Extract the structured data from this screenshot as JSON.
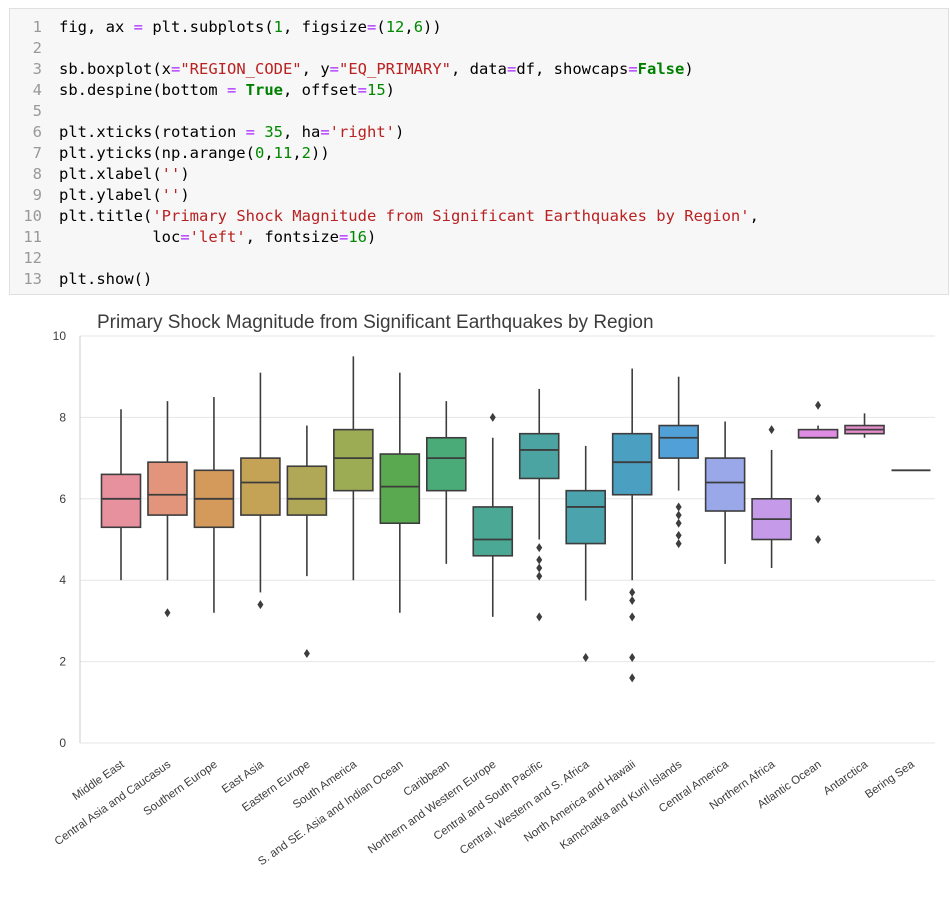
{
  "code_lines": [
    {
      "n": "1",
      "tokens": [
        {
          "t": "fig, ax "
        },
        {
          "t": "=",
          "c": "op"
        },
        {
          "t": " plt.subplots("
        },
        {
          "t": "1",
          "c": "num"
        },
        {
          "t": ", figsize"
        },
        {
          "t": "=",
          "c": "op"
        },
        {
          "t": "("
        },
        {
          "t": "12",
          "c": "num"
        },
        {
          "t": ","
        },
        {
          "t": "6",
          "c": "num"
        },
        {
          "t": "))"
        }
      ]
    },
    {
      "n": "2",
      "tokens": []
    },
    {
      "n": "3",
      "tokens": [
        {
          "t": "sb.boxplot(x"
        },
        {
          "t": "=",
          "c": "op"
        },
        {
          "t": "\"REGION_CODE\"",
          "c": "str"
        },
        {
          "t": ", y"
        },
        {
          "t": "=",
          "c": "op"
        },
        {
          "t": "\"EQ_PRIMARY\"",
          "c": "str"
        },
        {
          "t": ", data"
        },
        {
          "t": "=",
          "c": "op"
        },
        {
          "t": "df, showcaps"
        },
        {
          "t": "=",
          "c": "op"
        },
        {
          "t": "False",
          "c": "kw"
        },
        {
          "t": ")"
        }
      ]
    },
    {
      "n": "4",
      "tokens": [
        {
          "t": "sb.despine(bottom "
        },
        {
          "t": "=",
          "c": "op"
        },
        {
          "t": " "
        },
        {
          "t": "True",
          "c": "kw"
        },
        {
          "t": ", offset"
        },
        {
          "t": "=",
          "c": "op"
        },
        {
          "t": "15",
          "c": "num"
        },
        {
          "t": ")"
        }
      ]
    },
    {
      "n": "5",
      "tokens": []
    },
    {
      "n": "6",
      "tokens": [
        {
          "t": "plt.xticks(rotation "
        },
        {
          "t": "=",
          "c": "op"
        },
        {
          "t": " "
        },
        {
          "t": "35",
          "c": "num"
        },
        {
          "t": ", ha"
        },
        {
          "t": "=",
          "c": "op"
        },
        {
          "t": "'right'",
          "c": "str"
        },
        {
          "t": ")"
        }
      ]
    },
    {
      "n": "7",
      "tokens": [
        {
          "t": "plt.yticks(np.arange("
        },
        {
          "t": "0",
          "c": "num"
        },
        {
          "t": ","
        },
        {
          "t": "11",
          "c": "num"
        },
        {
          "t": ","
        },
        {
          "t": "2",
          "c": "num"
        },
        {
          "t": "))"
        }
      ]
    },
    {
      "n": "8",
      "tokens": [
        {
          "t": "plt.xlabel("
        },
        {
          "t": "''",
          "c": "str"
        },
        {
          "t": ")"
        }
      ]
    },
    {
      "n": "9",
      "tokens": [
        {
          "t": "plt.ylabel("
        },
        {
          "t": "''",
          "c": "str"
        },
        {
          "t": ")"
        }
      ]
    },
    {
      "n": "10",
      "tokens": [
        {
          "t": "plt.title("
        },
        {
          "t": "'Primary Shock Magnitude from Significant Earthquakes by Region'",
          "c": "str"
        },
        {
          "t": ","
        }
      ]
    },
    {
      "n": "11",
      "tokens": [
        {
          "t": "          loc"
        },
        {
          "t": "=",
          "c": "op"
        },
        {
          "t": "'left'",
          "c": "str"
        },
        {
          "t": ", fontsize"
        },
        {
          "t": "=",
          "c": "op"
        },
        {
          "t": "16",
          "c": "num"
        },
        {
          "t": ")"
        }
      ]
    },
    {
      "n": "12",
      "tokens": []
    },
    {
      "n": "13",
      "tokens": [
        {
          "t": "plt.show()"
        }
      ]
    }
  ],
  "colors": {
    "str": "#ba2121",
    "num": "#008800",
    "kw": "#008000",
    "op": "#aa22ff",
    "grid": "#e6e6e6",
    "box_edge": "#3d3d3d",
    "axis_text": "#3c3c3c"
  },
  "chart_data": {
    "type": "box",
    "title": "Primary Shock Magnitude from Significant Earthquakes by Region",
    "xlabel": "",
    "ylabel": "",
    "ylim": [
      0,
      10
    ],
    "yticks": [
      0,
      2,
      4,
      6,
      8,
      10
    ],
    "grid": "horizontal",
    "categories": [
      "Middle East",
      "Central Asia and Caucasus",
      "Southern Europe",
      "East Asia",
      "Eastern Europe",
      "South America",
      "S. and SE. Asia and Indian Ocean",
      "Caribbean",
      "Northern and Western Europe",
      "Central and South Pacific",
      "Central, Western and S. Africa",
      "North America and Hawaii",
      "Kamchatka and Kuril Islands",
      "Central America",
      "Northern Africa",
      "Atlantic Ocean",
      "Antarctica",
      "Bering Sea"
    ],
    "boxes": [
      {
        "min": 4.0,
        "q1": 5.3,
        "median": 6.0,
        "q3": 6.6,
        "max": 8.2,
        "outliers": [],
        "color": "#e7919e"
      },
      {
        "min": 4.0,
        "q1": 5.6,
        "median": 6.1,
        "q3": 6.9,
        "max": 8.4,
        "outliers": [
          3.2
        ],
        "color": "#e2957a"
      },
      {
        "min": 3.2,
        "q1": 5.3,
        "median": 6.0,
        "q3": 6.7,
        "max": 8.5,
        "outliers": [],
        "color": "#d39a5c"
      },
      {
        "min": 3.7,
        "q1": 5.6,
        "median": 6.4,
        "q3": 7.0,
        "max": 9.1,
        "outliers": [
          3.4
        ],
        "color": "#c4a256"
      },
      {
        "min": 4.1,
        "q1": 5.6,
        "median": 6.0,
        "q3": 6.8,
        "max": 7.8,
        "outliers": [
          2.2
        ],
        "color": "#b1a857"
      },
      {
        "min": 4.0,
        "q1": 6.2,
        "median": 7.0,
        "q3": 7.7,
        "max": 9.5,
        "outliers": [],
        "color": "#9cac55"
      },
      {
        "min": 3.2,
        "q1": 5.4,
        "median": 6.3,
        "q3": 7.1,
        "max": 9.1,
        "outliers": [],
        "color": "#5aa84f"
      },
      {
        "min": 4.4,
        "q1": 6.2,
        "median": 7.0,
        "q3": 7.5,
        "max": 8.4,
        "outliers": [],
        "color": "#4aab79"
      },
      {
        "min": 3.1,
        "q1": 4.6,
        "median": 5.0,
        "q3": 5.8,
        "max": 7.5,
        "outliers": [
          8.0
        ],
        "color": "#4aa894"
      },
      {
        "min": 5.0,
        "q1": 6.5,
        "median": 7.2,
        "q3": 7.6,
        "max": 8.7,
        "outliers": [
          4.8,
          4.5,
          4.3,
          4.1,
          3.1
        ],
        "color": "#4ba4a1"
      },
      {
        "min": 3.5,
        "q1": 4.9,
        "median": 5.8,
        "q3": 6.2,
        "max": 7.3,
        "outliers": [
          2.1
        ],
        "color": "#4ba3ad"
      },
      {
        "min": 4.0,
        "q1": 6.1,
        "median": 6.9,
        "q3": 7.6,
        "max": 9.2,
        "outliers": [
          3.7,
          3.5,
          3.1,
          2.1,
          1.6
        ],
        "color": "#4b9fc0"
      },
      {
        "min": 6.2,
        "q1": 7.0,
        "median": 7.5,
        "q3": 7.8,
        "max": 9.0,
        "outliers": [
          5.8,
          5.6,
          5.4,
          5.1,
          4.9
        ],
        "color": "#52a0d8"
      },
      {
        "min": 4.4,
        "q1": 5.7,
        "median": 6.4,
        "q3": 7.0,
        "max": 7.9,
        "outliers": [],
        "color": "#9aa8ea"
      },
      {
        "min": 4.3,
        "q1": 5.0,
        "median": 5.5,
        "q3": 6.0,
        "max": 7.2,
        "outliers": [
          7.7
        ],
        "color": "#c59be9"
      },
      {
        "min": 7.5,
        "q1": 7.5,
        "median": 7.5,
        "q3": 7.7,
        "max": 7.8,
        "outliers": [
          8.3,
          6.0,
          5.0
        ],
        "color": "#de8ce4"
      },
      {
        "min": 7.5,
        "q1": 7.6,
        "median": 7.7,
        "q3": 7.8,
        "max": 8.1,
        "outliers": [],
        "color": "#e68ecc"
      },
      {
        "min": 6.7,
        "q1": 6.7,
        "median": 6.7,
        "q3": 6.7,
        "max": 6.7,
        "outliers": [],
        "color": "#e98fb3"
      }
    ]
  }
}
